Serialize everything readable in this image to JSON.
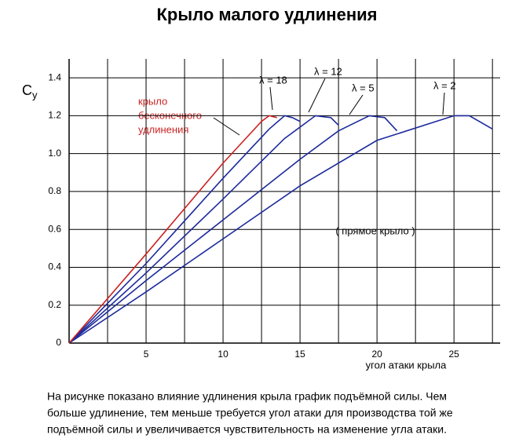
{
  "chart_data": {
    "type": "line",
    "title": "Крыло малого удлинения",
    "ylabel": "C",
    "ylabel_sub": "y",
    "xlabel": "угол атаки крыла",
    "xlim": [
      0,
      28
    ],
    "ylim": [
      0,
      1.5
    ],
    "xticks": [
      5,
      10,
      15,
      20,
      25
    ],
    "xminor": [
      2.5,
      7.5,
      12.5,
      17.5,
      22.5,
      27.5
    ],
    "yticks": [
      0,
      {
        "value": 0.2,
        "label": "0.2"
      },
      {
        "value": 0.4,
        "label": "0.4"
      },
      {
        "value": 0.6,
        "label": "0.6"
      },
      {
        "value": 0.8,
        "label": "0.8"
      },
      {
        "value": 1.0,
        "label": "1.0"
      },
      {
        "value": 1.2,
        "label": "1.2"
      },
      {
        "value": 1.4,
        "label": "1.4"
      }
    ],
    "grid": true,
    "annotations": [
      "крыло",
      "бесконечного",
      "удлинения",
      "( прямое крыло )"
    ],
    "series": [
      {
        "name": "λ = 18",
        "color": "#1c2a9c",
        "x": [
          0,
          5,
          10,
          13,
          14,
          14.5,
          15
        ],
        "values": [
          0,
          0.42,
          0.87,
          1.13,
          1.2,
          1.19,
          1.17
        ]
      },
      {
        "name": "λ = 12",
        "color": "#1c2a9c",
        "x": [
          0,
          5,
          10,
          14,
          16,
          17,
          17.5
        ],
        "values": [
          0,
          0.37,
          0.76,
          1.08,
          1.2,
          1.19,
          1.15
        ]
      },
      {
        "name": "λ = 5",
        "color": "#1c2a9c",
        "x": [
          0,
          5,
          10,
          15,
          17.5,
          19.5,
          20.5,
          21.3
        ],
        "values": [
          0,
          0.33,
          0.65,
          0.97,
          1.12,
          1.2,
          1.19,
          1.12
        ]
      },
      {
        "name": "λ = 2",
        "color": "#1c2a9c",
        "x": [
          0,
          5,
          10,
          15,
          20,
          25,
          26,
          27.5
        ],
        "values": [
          0,
          0.27,
          0.55,
          0.83,
          1.07,
          1.2,
          1.2,
          1.13
        ]
      },
      {
        "name": "крыло бесконечного удлинения",
        "color": "#cc2222",
        "x": [
          0,
          5,
          10,
          12.5,
          13,
          13.5
        ],
        "values": [
          0,
          0.47,
          0.95,
          1.17,
          1.2,
          1.19
        ]
      }
    ],
    "caption": [
      "На рисунке показано влияние удлинения крыла график подъёмной силы. Чем",
      "больше удлинение, тем меньше требуется угол атаки для производства той же",
      "подъёмной силы и увеличивается чувствительность на изменение угла атаки."
    ]
  }
}
